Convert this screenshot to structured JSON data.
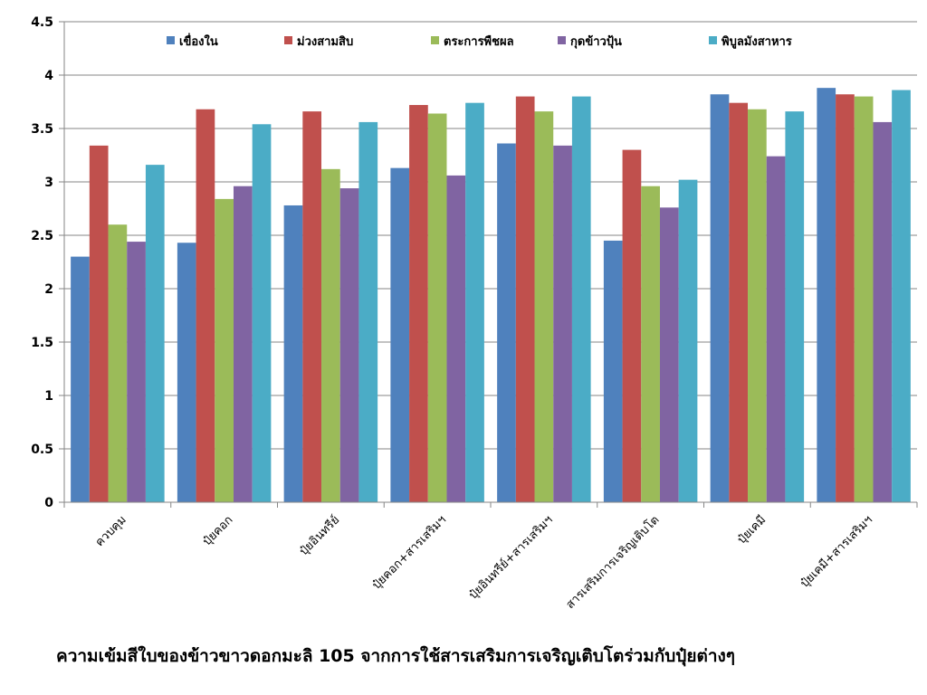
{
  "chart_data": {
    "type": "bar",
    "categories": [
      "ควบคุม",
      "ปุ๋ยคอก",
      "ปุ๋ยอินทรีย์",
      "ปุ๋ยคอก+สารเสริมฯ",
      "ปุ๋ยอินทรีย์+สารเสริมฯ",
      "สารเสริมการเจริญเติบโต",
      "ปุ๋ยเคมี",
      "ปุ๋ยเคมี+สารเสริมฯ"
    ],
    "series": [
      {
        "name": "เขื่องใน",
        "color": "#4f81bd",
        "values": [
          2.3,
          2.43,
          2.78,
          3.13,
          3.36,
          2.45,
          3.82,
          3.88
        ]
      },
      {
        "name": "ม่วงสามสิบ",
        "color": "#c0504d",
        "values": [
          3.34,
          3.68,
          3.66,
          3.72,
          3.8,
          3.3,
          3.74,
          3.82
        ]
      },
      {
        "name": "ตระการพืชผล",
        "color": "#9bbb59",
        "values": [
          2.6,
          2.84,
          3.12,
          3.64,
          3.66,
          2.96,
          3.68,
          3.8
        ]
      },
      {
        "name": "กุดข้าวปุ้น",
        "color": "#8064a2",
        "values": [
          2.44,
          2.96,
          2.94,
          3.06,
          3.34,
          2.76,
          3.24,
          3.56
        ]
      },
      {
        "name": "พิบูลมังสาหาร",
        "color": "#4bacc6",
        "values": [
          3.16,
          3.54,
          3.56,
          3.74,
          3.8,
          3.02,
          3.66,
          3.86
        ]
      }
    ],
    "ylim": [
      0,
      4.5
    ],
    "yticks": [
      "0",
      "0.5",
      "1",
      "1.5",
      "2",
      "2.5",
      "3",
      "3.5",
      "4",
      "4.5"
    ],
    "grid": true,
    "legend": "top"
  },
  "caption": "ความเข้มสีใบของข้าวขาวดอกมะลิ 105 จากการใช้สารเสริมการเจริญเติบโตร่วมกับปุ๋ยต่างๆ"
}
